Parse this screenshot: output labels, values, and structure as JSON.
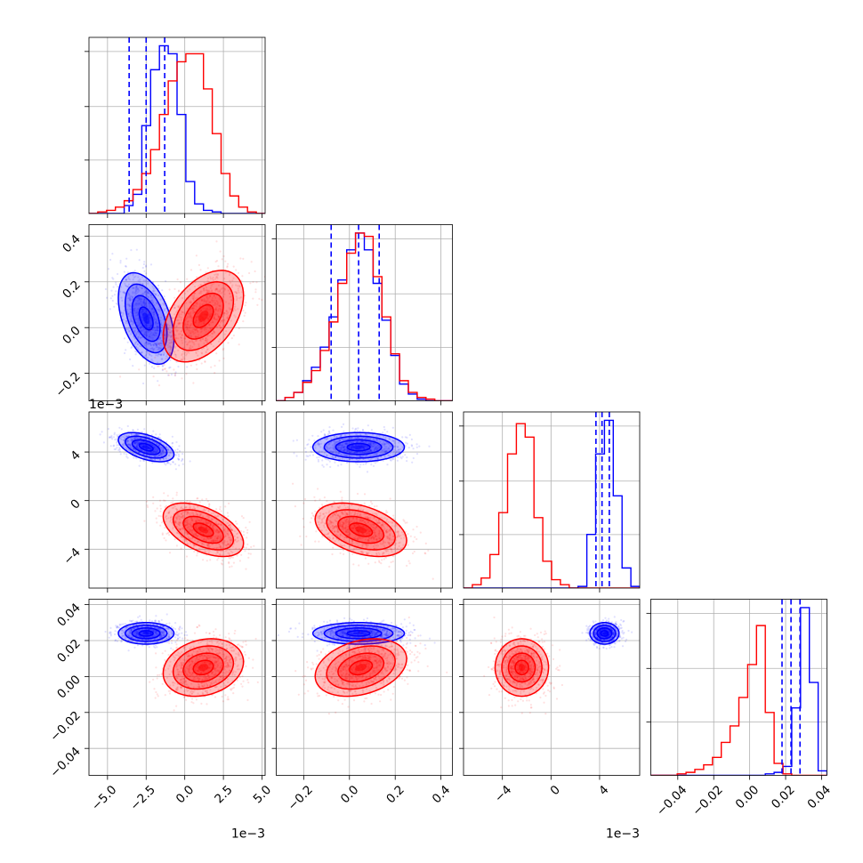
{
  "chart_data": {
    "type": "corner",
    "grid": true,
    "series": [
      {
        "color": "#0000ff",
        "means": [
          -2.5,
          0.04,
          0.0044,
          0.024
        ],
        "sd": [
          0.9,
          0.1,
          0.0006,
          0.003
        ],
        "corr": [
          [
            1,
            -0.45,
            -0.5,
            0
          ],
          [
            -0.45,
            1,
            0,
            0
          ],
          [
            -0.5,
            0,
            1,
            0
          ],
          [
            0,
            0,
            0,
            1
          ]
        ],
        "quantiles": [
          [
            -3.6,
            -2.5,
            -1.3
          ],
          [
            -0.08,
            0.04,
            0.13
          ],
          [
            0.0037,
            0.0042,
            0.0048
          ],
          [
            0.018,
            0.023,
            0.028
          ]
        ],
        "hist": [
          [
            0,
            0,
            0,
            0,
            0.05,
            0.12,
            0.55,
            0.9,
            1.05,
            1.0,
            0.62,
            0.2,
            0.06,
            0.02,
            0.01,
            0,
            0,
            0,
            0,
            0
          ],
          [
            0,
            0.02,
            0.05,
            0.12,
            0.2,
            0.32,
            0.5,
            0.72,
            0.9,
            1.0,
            0.9,
            0.7,
            0.48,
            0.27,
            0.1,
            0.04,
            0.01,
            0,
            0,
            0
          ],
          [
            0,
            0,
            0,
            0,
            0,
            0,
            0,
            0,
            0,
            0,
            0,
            0,
            0,
            0.01,
            0.32,
            0.8,
            1.0,
            0.55,
            0.12,
            0.01
          ],
          [
            0,
            0,
            0,
            0,
            0,
            0,
            0,
            0,
            0,
            0,
            0,
            0,
            0,
            0.01,
            0.02,
            0.06,
            0.45,
            1.12,
            0.62,
            0.03
          ]
        ]
      },
      {
        "color": "#ff0000",
        "means": [
          1.2,
          0.05,
          -0.0024,
          0.005
        ],
        "sd": [
          1.3,
          0.1,
          0.0011,
          0.008
        ],
        "corr": [
          [
            1,
            0.45,
            -0.5,
            0.2
          ],
          [
            0.45,
            1,
            -0.4,
            0.3
          ],
          [
            -0.5,
            -0.4,
            1,
            0
          ],
          [
            0.2,
            0.3,
            0,
            1
          ]
        ],
        "hist": [
          [
            0,
            0.01,
            0.02,
            0.04,
            0.08,
            0.15,
            0.25,
            0.4,
            0.62,
            0.83,
            0.95,
            1.0,
            1.0,
            0.78,
            0.5,
            0.25,
            0.11,
            0.04,
            0.01,
            0
          ],
          [
            0,
            0.02,
            0.05,
            0.11,
            0.18,
            0.3,
            0.47,
            0.7,
            0.88,
            1.0,
            0.98,
            0.74,
            0.5,
            0.28,
            0.12,
            0.05,
            0.02,
            0.01,
            0,
            0
          ],
          [
            0,
            0.02,
            0.06,
            0.2,
            0.45,
            0.8,
            0.98,
            0.9,
            0.42,
            0.16,
            0.05,
            0.02,
            0,
            0,
            0,
            0,
            0,
            0,
            0,
            0
          ],
          [
            0,
            0,
            0,
            0.01,
            0.02,
            0.04,
            0.07,
            0.12,
            0.22,
            0.33,
            0.52,
            0.74,
            1.0,
            0.42,
            0.08,
            0.01,
            0,
            0,
            0,
            0
          ]
        ]
      }
    ],
    "params": [
      {
        "range": [
          -6.2,
          5.2
        ],
        "ticks": [
          -5.0,
          -2.5,
          0.0,
          2.5,
          5.0
        ],
        "tick_labels": [
          "−5.0",
          "−2.5",
          "0.0",
          "2.5",
          "5.0"
        ],
        "offset": "1e−3"
      },
      {
        "range": [
          -0.32,
          0.45
        ],
        "ticks": [
          -0.2,
          0.0,
          0.2,
          0.4
        ],
        "tick_labels": [
          "−0.2",
          "0.0",
          "0.2",
          "0.4"
        ],
        "offset": ""
      },
      {
        "range": [
          -0.0072,
          0.0073
        ],
        "ticks": [
          -0.004,
          0.0,
          0.004
        ],
        "tick_labels": [
          "−4",
          "0",
          "4"
        ],
        "offset": "1e−3"
      },
      {
        "range": [
          -0.055,
          0.043
        ],
        "ticks": [
          -0.04,
          -0.02,
          0.0,
          0.02,
          0.04
        ],
        "tick_labels": [
          "−0.04",
          "−0.02",
          "0.00",
          "0.02",
          "0.04"
        ],
        "offset": ""
      }
    ]
  }
}
